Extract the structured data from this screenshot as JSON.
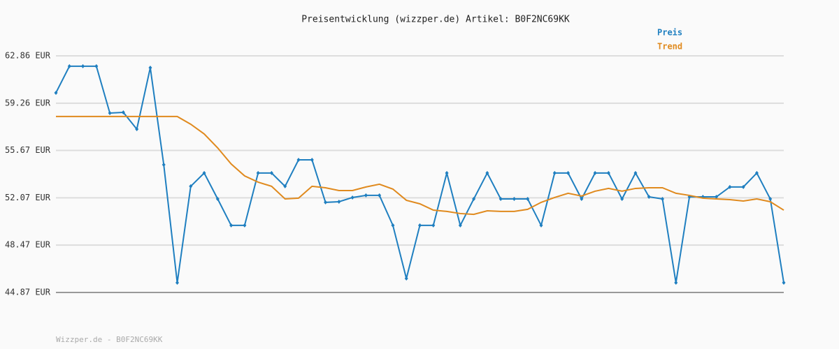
{
  "chart_data": {
    "type": "line",
    "title": "Preisentwicklung (wizzper.de) Artikel: B0F2NC69KK",
    "footer": "Wizzper.de - B0F2NC69KK",
    "ylim": [
      44.87,
      62.86
    ],
    "yticks": [
      {
        "value": 44.87,
        "label": "44.87 EUR"
      },
      {
        "value": 48.47,
        "label": "48.47 EUR"
      },
      {
        "value": 52.07,
        "label": "52.07 EUR"
      },
      {
        "value": 55.67,
        "label": "55.67 EUR"
      },
      {
        "value": 59.26,
        "label": "59.26 EUR"
      },
      {
        "value": 62.86,
        "label": "62.86 EUR"
      }
    ],
    "grid": true,
    "series": [
      {
        "name": "Preis",
        "color": "#1f7fc0",
        "markers": true,
        "values": [
          60.05,
          62.07,
          62.07,
          62.07,
          58.51,
          58.56,
          57.29,
          61.96,
          54.58,
          45.61,
          52.94,
          53.95,
          51.98,
          49.97,
          49.97,
          53.95,
          53.95,
          52.94,
          54.95,
          54.95,
          51.72,
          51.77,
          52.09,
          52.25,
          52.25,
          49.97,
          45.93,
          49.97,
          49.97,
          53.95,
          49.97,
          51.98,
          53.95,
          51.98,
          51.98,
          51.98,
          49.97,
          53.95,
          53.95,
          51.98,
          53.95,
          53.95,
          51.98,
          53.95,
          52.14,
          51.98,
          45.61,
          52.14,
          52.14,
          52.14,
          52.89,
          52.89,
          53.95,
          51.98,
          45.61
        ]
      },
      {
        "name": "Trend",
        "color": "#e08a1e",
        "markers": false,
        "values": [
          58.25,
          58.25,
          58.25,
          58.25,
          58.25,
          58.25,
          58.25,
          58.25,
          58.25,
          58.25,
          57.66,
          56.92,
          55.86,
          54.64,
          53.73,
          53.26,
          52.94,
          51.98,
          52.04,
          52.94,
          52.83,
          52.62,
          52.62,
          52.89,
          53.1,
          52.73,
          51.88,
          51.61,
          51.13,
          51.03,
          50.87,
          50.81,
          51.08,
          51.03,
          51.03,
          51.19,
          51.72,
          52.09,
          52.41,
          52.2,
          52.57,
          52.78,
          52.57,
          52.78,
          52.83,
          52.83,
          52.41,
          52.25,
          52.04,
          51.98,
          51.93,
          51.82,
          51.98,
          51.77,
          51.13
        ]
      }
    ]
  }
}
